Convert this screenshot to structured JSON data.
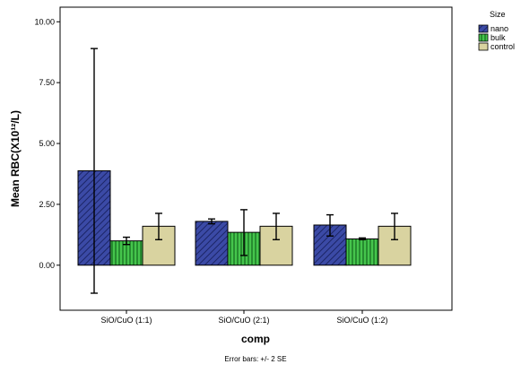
{
  "chart_data": {
    "type": "bar",
    "title": "",
    "xlabel": "comp",
    "ylabel": "Mean RBC(X10¹²/L)",
    "footnote": "Error bars: +/- 2 SE",
    "categories": [
      "SiO/CuO (1:1)",
      "SiO/CuO (2:1)",
      "SiO/CuO (1:2)"
    ],
    "ylim": [
      -1.85,
      10.6
    ],
    "yticks": [
      0,
      2.5,
      5,
      7.5,
      10
    ],
    "ytick_labels": [
      "0.00",
      "2.50",
      "5.00",
      "7.50",
      "10.00"
    ],
    "grid": false,
    "legend": {
      "title": "Size",
      "placement": "top-right"
    },
    "series": [
      {
        "name": "nano",
        "color": "#2b3a8c",
        "pattern": "diagonal-hatch",
        "values": [
          3.88,
          1.8,
          1.65
        ],
        "error_low": [
          -1.15,
          1.7,
          1.2
        ],
        "error_high": [
          8.9,
          1.9,
          2.07
        ]
      },
      {
        "name": "bulk",
        "color": "#2fae3a",
        "pattern": "vertical-stripes",
        "values": [
          1.0,
          1.35,
          1.08
        ],
        "error_low": [
          0.85,
          0.4,
          1.05
        ],
        "error_high": [
          1.15,
          2.28,
          1.12
        ]
      },
      {
        "name": "control",
        "color": "#d9d3a0",
        "pattern": "solid",
        "values": [
          1.6,
          1.6,
          1.6
        ],
        "error_low": [
          1.05,
          1.05,
          1.05
        ],
        "error_high": [
          2.13,
          2.13,
          2.13
        ]
      }
    ]
  }
}
